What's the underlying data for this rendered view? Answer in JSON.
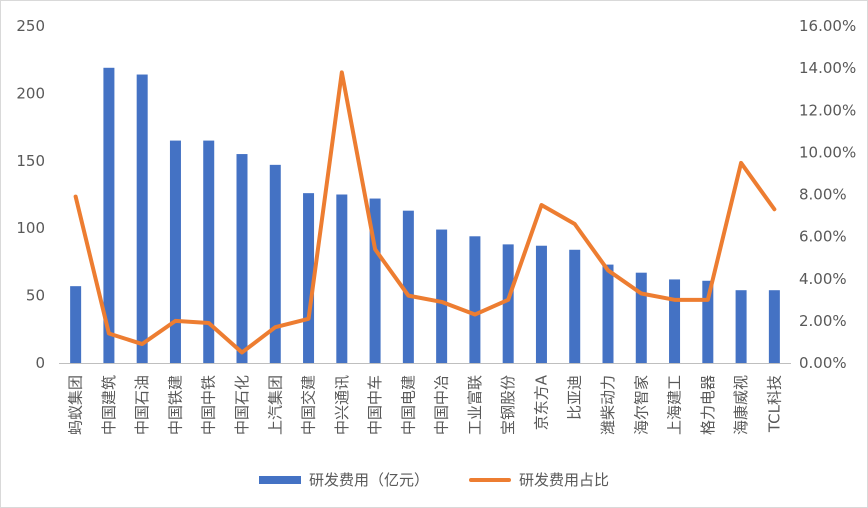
{
  "chart_data": {
    "type": "bar",
    "categories": [
      "蚂蚁集团",
      "中国建筑",
      "中国石油",
      "中国铁建",
      "中国中铁",
      "中国石化",
      "上汽集团",
      "中国交建",
      "中兴通讯",
      "中国中车",
      "中国电建",
      "中国中冶",
      "工业富联",
      "宝钢股份",
      "京东方A",
      "比亚迪",
      "潍柴动力",
      "海尔智家",
      "上海建工",
      "格力电器",
      "海康威视",
      "TCL科技"
    ],
    "series": [
      {
        "name": "研发费用（亿元）",
        "axis": "left",
        "kind": "bar",
        "color": "#4472C4",
        "values": [
          57,
          219,
          214,
          165,
          165,
          155,
          147,
          126,
          125,
          122,
          113,
          99,
          94,
          88,
          87,
          84,
          73,
          67,
          62,
          61,
          54,
          54
        ]
      },
      {
        "name": "研发费用占比",
        "axis": "right",
        "kind": "line",
        "color": "#ED7D31",
        "values": [
          7.9,
          1.4,
          0.9,
          2.0,
          1.9,
          0.5,
          1.7,
          2.1,
          13.8,
          5.4,
          3.2,
          2.9,
          2.3,
          3.0,
          7.5,
          6.6,
          4.4,
          3.3,
          3.0,
          3.0,
          9.5,
          7.3
        ]
      }
    ],
    "ylim_left": [
      0,
      250
    ],
    "yticks_left": [
      "0",
      "50",
      "100",
      "150",
      "200",
      "250"
    ],
    "ylim_right": [
      0,
      16
    ],
    "yticks_right": [
      "0.00%",
      "2.00%",
      "4.00%",
      "6.00%",
      "8.00%",
      "10.00%",
      "12.00%",
      "14.00%",
      "16.00%"
    ],
    "grid": false,
    "legend_position": "bottom"
  },
  "legend": {
    "bar_label": "研发费用（亿元）",
    "line_label": "研发费用占比"
  }
}
